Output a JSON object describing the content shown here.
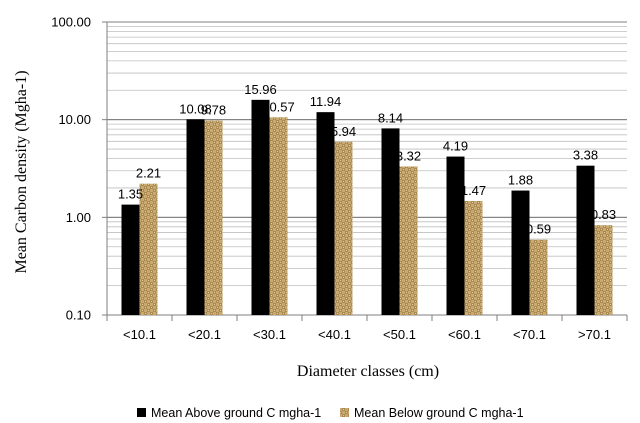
{
  "chart_data": {
    "type": "bar",
    "scale": "log",
    "categories": [
      "<10.1",
      "<20.1",
      "<30.1",
      "<40.1",
      "<50.1",
      "<60.1",
      "<70.1",
      ">70.1"
    ],
    "series": [
      {
        "name": "Mean Above ground C mgha-1",
        "color": "#000000",
        "values": [
          1.35,
          10.08,
          15.96,
          11.94,
          8.14,
          4.19,
          1.88,
          3.38
        ],
        "labels": [
          "1.35",
          "10.08",
          "15.96",
          "11.94",
          "8.14",
          "4.19",
          "1.88",
          "3.38"
        ]
      },
      {
        "name": "Mean Below ground C mgha-1",
        "color": "#c8a86e",
        "pattern": "woven-texture",
        "values": [
          2.21,
          9.78,
          10.57,
          5.94,
          3.32,
          1.47,
          0.59,
          0.83
        ],
        "labels": [
          "2.21",
          "9.78",
          "10.57",
          "5.94",
          "3.32",
          "1.47",
          "0.59",
          "0.83"
        ]
      }
    ],
    "ylim": [
      0.1,
      100
    ],
    "yticks": [
      "0.10",
      "1.00",
      "10.00",
      "100.00"
    ],
    "ylabel": "Mean Carbon density (Mgha-1)",
    "xlabel": "Diameter classes (cm)",
    "grid": true,
    "legend_position": "bottom"
  }
}
